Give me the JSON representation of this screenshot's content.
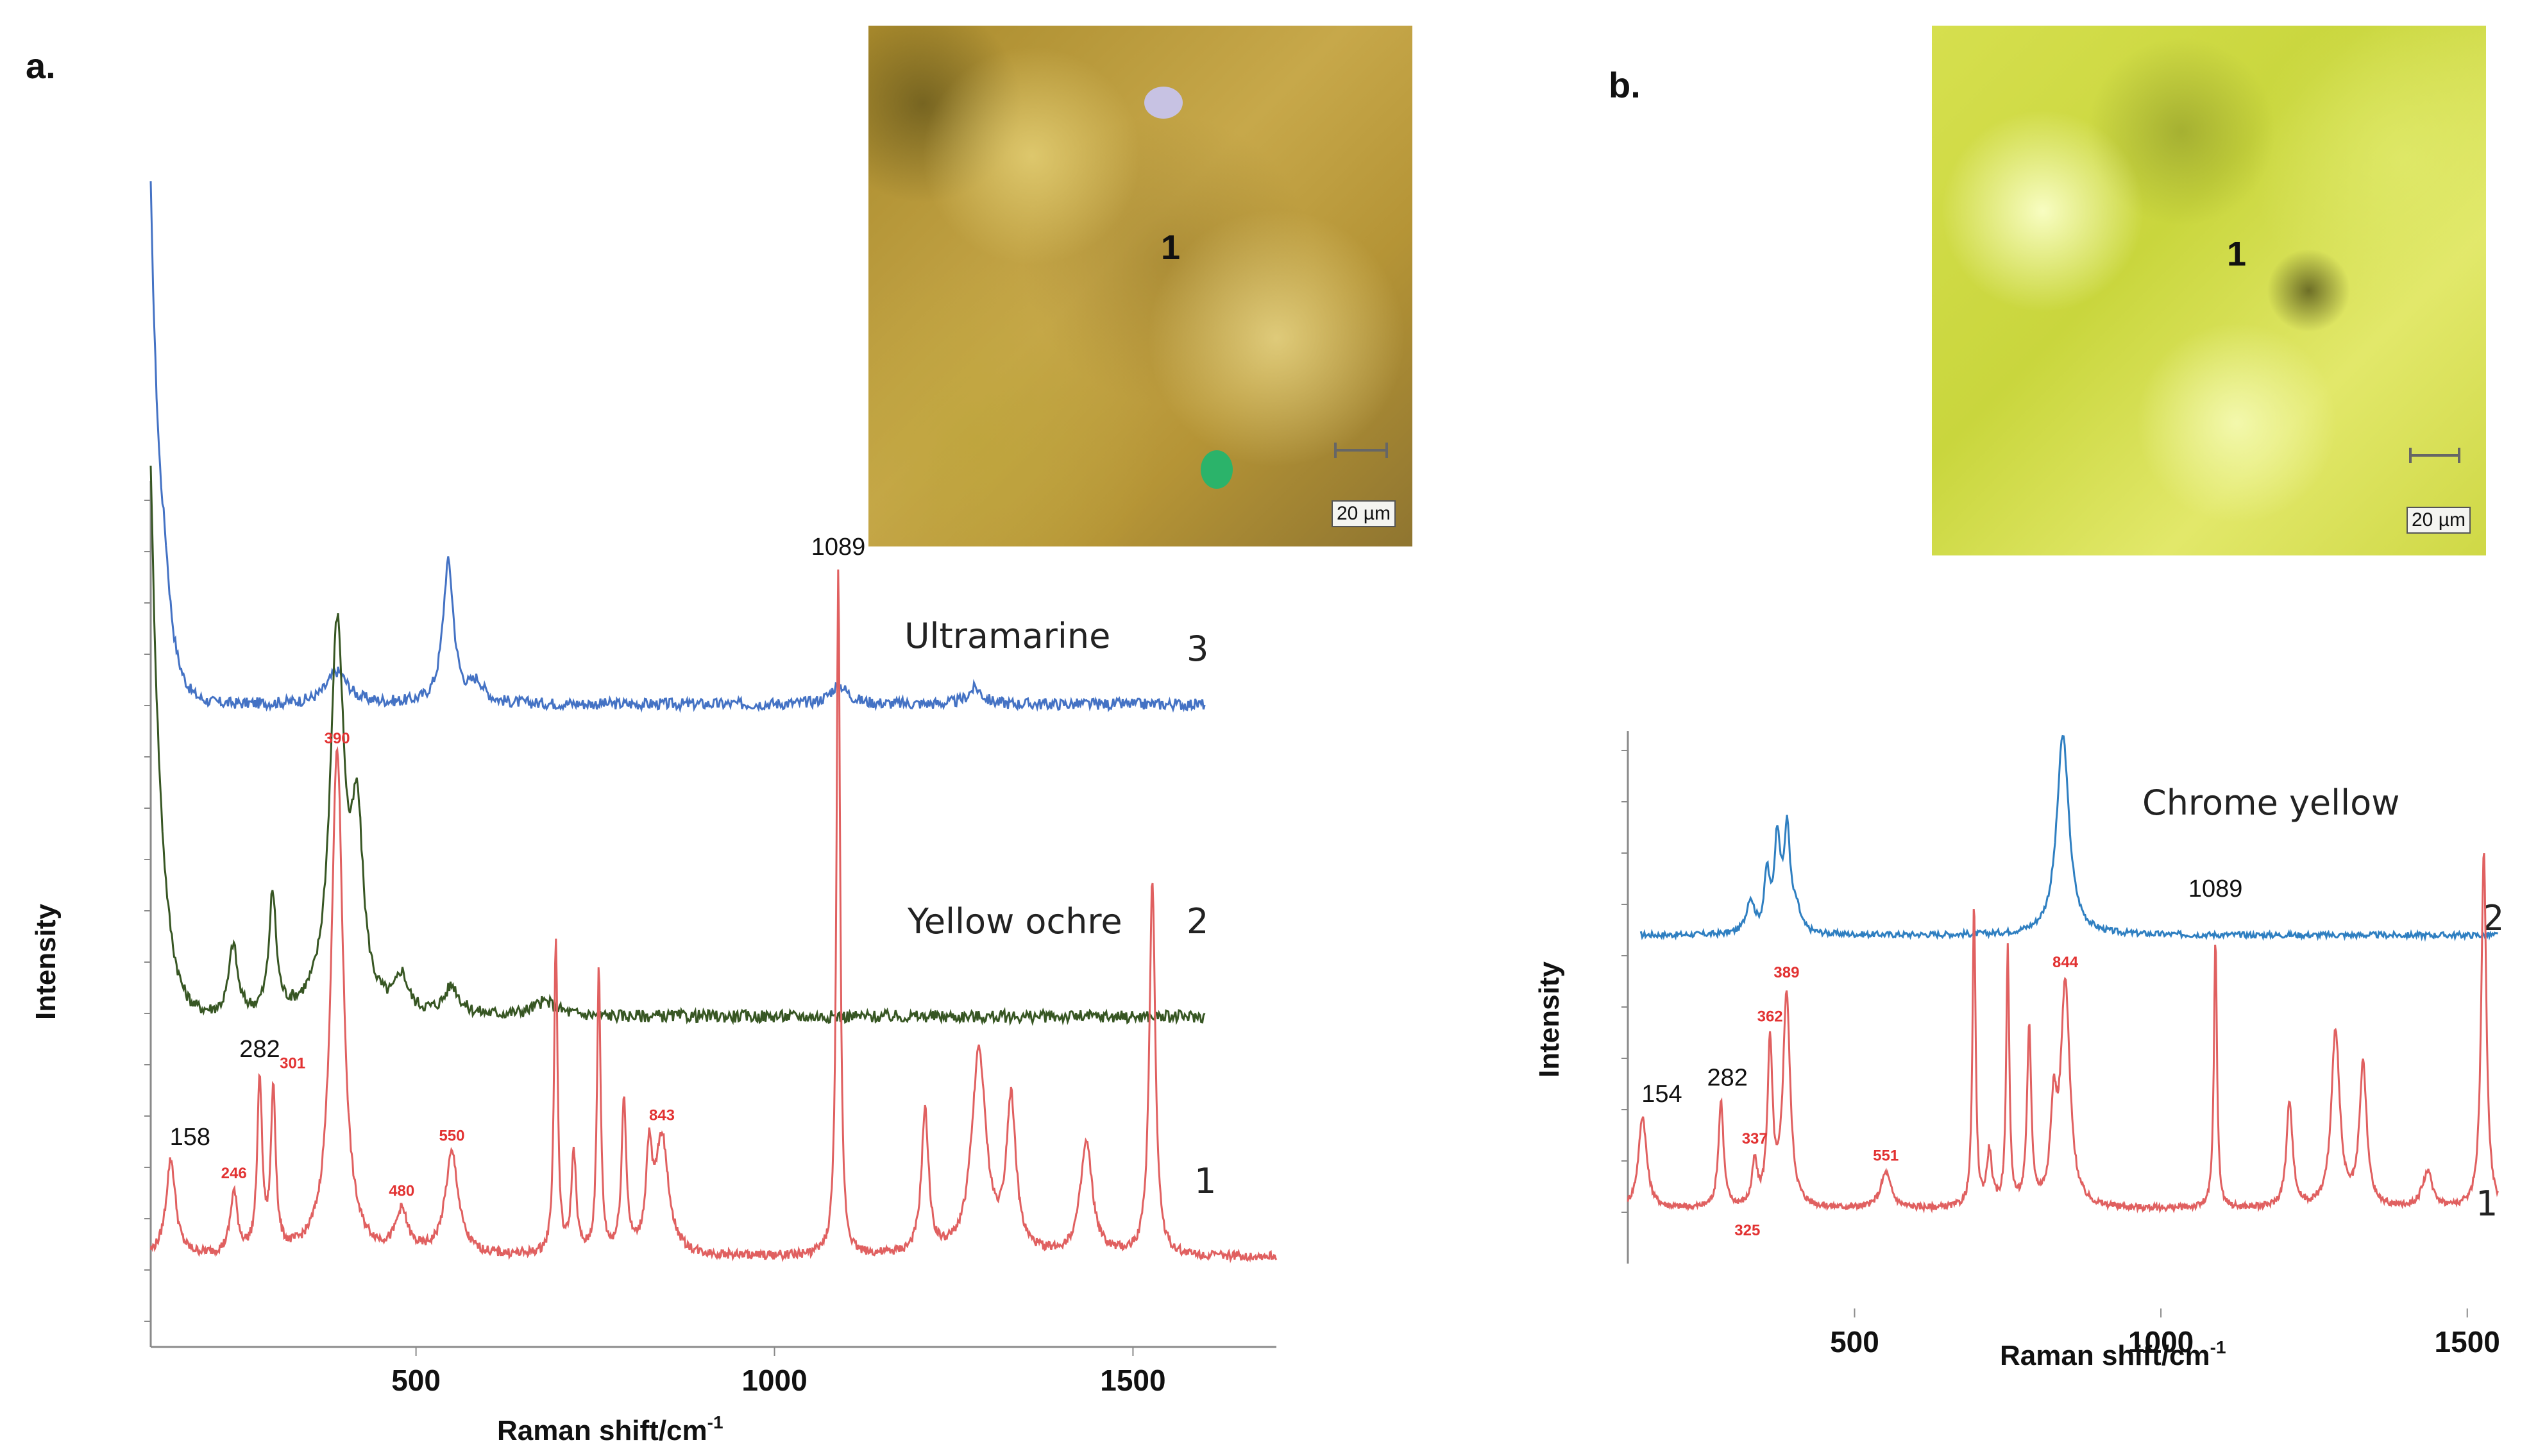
{
  "panels": {
    "a": {
      "label": "a.",
      "micro": {
        "marker": "1",
        "scale": "20 µm"
      },
      "chart_data": {
        "type": "line",
        "xlabel": "Raman shift/cm-1",
        "xlabel_main": "Raman shift/cm",
        "xlabel_sup": "-1",
        "ylabel": "Intensity",
        "xlim": [
          130,
          1700
        ],
        "xticks": [
          500,
          1000,
          1500
        ],
        "series": [
          {
            "name": "Ultramarine",
            "trace": "3",
            "color": "#4472c4",
            "baseline": 0.0,
            "peaks": [
              [
                150,
                0.06,
                8
              ],
              [
                390,
                0.05,
                18
              ],
              [
                545,
                0.22,
                9
              ],
              [
                585,
                0.03,
                12
              ],
              [
                1090,
                0.03,
                15
              ],
              [
                1280,
                0.025,
                12
              ]
            ],
            "start_high": true
          },
          {
            "name": "Yellow ochre",
            "trace": "2",
            "color": "#375623",
            "baseline": 0.0,
            "peaks": [
              [
                245,
                0.1,
                7
              ],
              [
                300,
                0.17,
                6
              ],
              [
                390,
                0.55,
                12
              ],
              [
                418,
                0.25,
                10
              ],
              [
                480,
                0.05,
                10
              ],
              [
                550,
                0.04,
                12
              ],
              [
                680,
                0.02,
                20
              ]
            ],
            "start_high": true
          },
          {
            "name": "",
            "trace": "1",
            "color": "#e06060",
            "baseline": 0.0,
            "peaks": [
              [
                158,
                0.19,
                8
              ],
              [
                246,
                0.12,
                6
              ],
              [
                282,
                0.34,
                4
              ],
              [
                301,
                0.32,
                4
              ],
              [
                390,
                1.0,
                10
              ],
              [
                480,
                0.08,
                10
              ],
              [
                550,
                0.2,
                11
              ],
              [
                695,
                0.62,
                3
              ],
              [
                720,
                0.2,
                4
              ],
              [
                755,
                0.56,
                3
              ],
              [
                790,
                0.3,
                4
              ],
              [
                825,
                0.18,
                5
              ],
              [
                843,
                0.23,
                11
              ],
              [
                1089,
                1.35,
                3
              ],
              [
                1210,
                0.28,
                6
              ],
              [
                1285,
                0.4,
                12
              ],
              [
                1330,
                0.3,
                8
              ],
              [
                1435,
                0.22,
                10
              ],
              [
                1527,
                0.74,
                5
              ]
            ],
            "start_high": false
          }
        ],
        "annotations_black": [
          {
            "text": "1089",
            "x": 1089,
            "series": "Ultramarine"
          },
          {
            "text": "282",
            "x": 282,
            "series": "trace1"
          },
          {
            "text": "158",
            "x": 158,
            "series": "trace1"
          }
        ],
        "annotations_red": [
          {
            "text": "390",
            "x": 390
          },
          {
            "text": "301",
            "x": 301
          },
          {
            "text": "246",
            "x": 246
          },
          {
            "text": "550",
            "x": 550
          },
          {
            "text": "480",
            "x": 480
          },
          {
            "text": "843",
            "x": 843
          }
        ]
      }
    },
    "b": {
      "label": "b.",
      "micro": {
        "marker": "1",
        "scale": "20 µm"
      },
      "chart_data": {
        "type": "line",
        "xlabel": "Raman shift/cm-1",
        "xlabel_main": "Raman shift/cm",
        "xlabel_sup": "-1",
        "ylabel": "Intensity",
        "xlim": [
          130,
          1650
        ],
        "xticks": [
          500,
          1000,
          1500
        ],
        "series": [
          {
            "name": "Chrome yellow",
            "trace": "2",
            "color": "#2f7fc1",
            "baseline": 0.0,
            "peaks": [
              [
                330,
                0.1,
                8
              ],
              [
                357,
                0.17,
                5
              ],
              [
                374,
                0.28,
                6
              ],
              [
                390,
                0.3,
                6
              ],
              [
                405,
                0.06,
                8
              ],
              [
                840,
                0.6,
                12
              ]
            ],
            "start_high": false
          },
          {
            "name": "",
            "trace": "1",
            "color": "#e06060",
            "baseline": 0.0,
            "peaks": [
              [
                154,
                0.26,
                8
              ],
              [
                282,
                0.3,
                5
              ],
              [
                337,
                0.12,
                5
              ],
              [
                362,
                0.45,
                5
              ],
              [
                389,
                0.6,
                7
              ],
              [
                551,
                0.1,
                10
              ],
              [
                695,
                0.85,
                3
              ],
              [
                720,
                0.15,
                5
              ],
              [
                750,
                0.72,
                3
              ],
              [
                785,
                0.5,
                4
              ],
              [
                825,
                0.25,
                6
              ],
              [
                844,
                0.62,
                9
              ],
              [
                1089,
                0.76,
                3
              ],
              [
                1210,
                0.3,
                6
              ],
              [
                1285,
                0.5,
                8
              ],
              [
                1330,
                0.4,
                7
              ],
              [
                1435,
                0.1,
                10
              ],
              [
                1527,
                1.0,
                5
              ]
            ],
            "start_high": false
          }
        ],
        "annotations_black": [
          {
            "text": "1089",
            "x": 1089,
            "series": "Chrome yellow"
          },
          {
            "text": "282",
            "x": 282,
            "series": "trace1"
          },
          {
            "text": "154",
            "x": 154,
            "series": "trace1"
          }
        ],
        "annotations_red": [
          {
            "text": "389",
            "x": 389
          },
          {
            "text": "362",
            "x": 362
          },
          {
            "text": "337",
            "x": 337
          },
          {
            "text": "325",
            "x": 325
          },
          {
            "text": "551",
            "x": 551
          },
          {
            "text": "844",
            "x": 844
          }
        ]
      }
    }
  }
}
